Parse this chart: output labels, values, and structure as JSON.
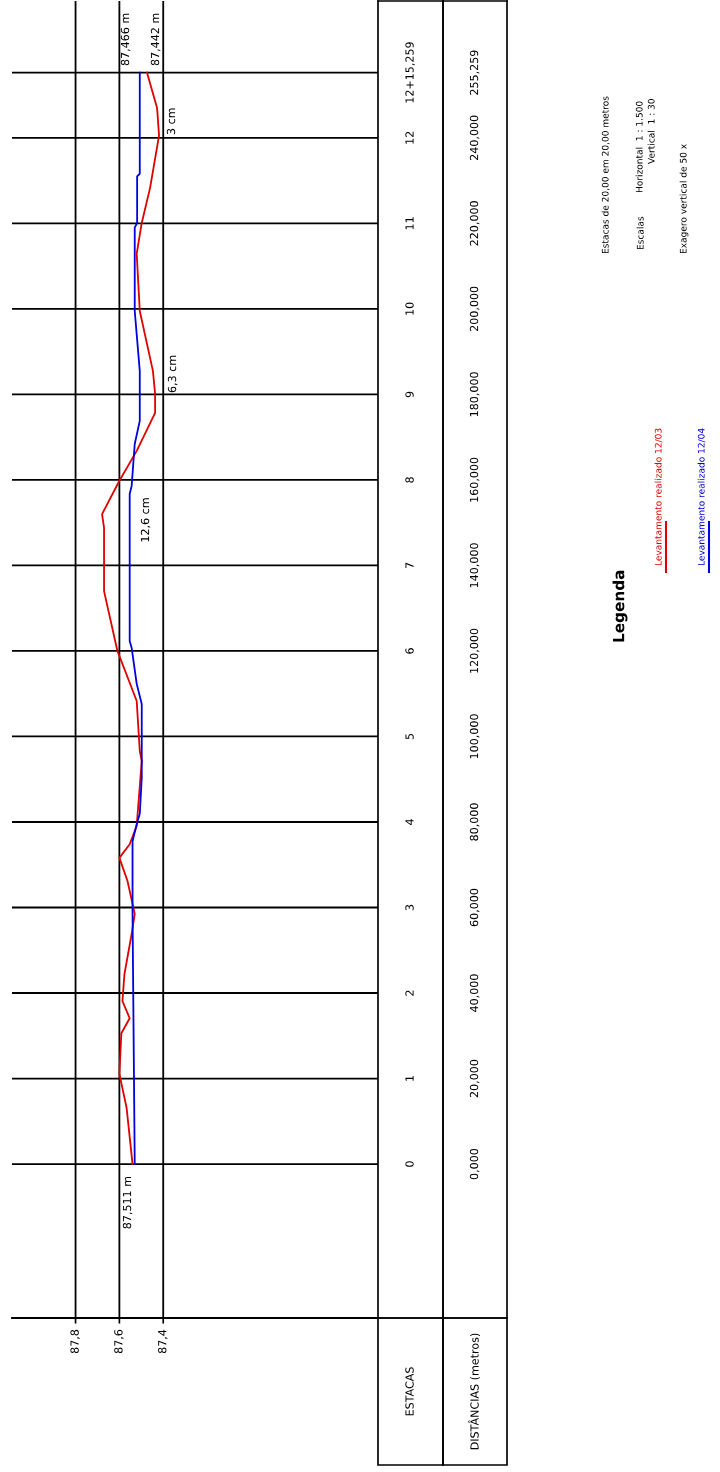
{
  "chart_data": {
    "type": "line",
    "orientation": "horizontal",
    "legend": "right",
    "legend_title": "Legenda",
    "grid": true,
    "ylabel": "DISTÂNCIAS (metros)",
    "y2label": "ESTACAS",
    "series": [
      {
        "name": "Levantamento realizado 12/03",
        "color": "#e00000",
        "x": [
          0,
          13.1,
          21.1,
          30.6,
          34.1,
          38.1,
          44.4,
          53.8,
          58.5,
          66.2,
          71.6,
          74.8,
          79.1,
          94.3,
          96.6,
          108.3,
          120.0,
          134.0,
          148.8,
          152.0,
          159.8,
          166.8,
          175.7,
          180.1,
          185.5,
          199.5,
          212.9,
          220.1,
          228.3,
          240.5,
          247.0,
          255.259
        ],
        "values": [
          87.54,
          87.567,
          87.6,
          87.591,
          87.553,
          87.586,
          87.577,
          87.544,
          87.53,
          87.563,
          87.6,
          87.553,
          87.521,
          87.498,
          87.507,
          87.521,
          87.609,
          87.67,
          87.67,
          87.679,
          87.6,
          87.521,
          87.437,
          87.437,
          87.447,
          87.507,
          87.521,
          87.498,
          87.46,
          87.419,
          87.428,
          87.474
        ]
      },
      {
        "name": "Levantamento realizado 12/04",
        "color": "#0000e0",
        "x": [
          0,
          58.5,
          75.5,
          79.5,
          81.9,
          90.3,
          107.6,
          112.3,
          120.7,
          122.3,
          156.7,
          158.6,
          168.4,
          173.8,
          185.5,
          199.5,
          219.0,
          220.1,
          231.0,
          231.6,
          255.259
        ],
        "values": [
          87.53,
          87.54,
          87.54,
          87.521,
          87.507,
          87.498,
          87.498,
          87.521,
          87.544,
          87.553,
          87.553,
          87.544,
          87.53,
          87.507,
          87.507,
          87.53,
          87.53,
          87.519,
          87.519,
          87.507,
          87.507
        ]
      }
    ],
    "xlim": [
      88.09,
      86.42
    ],
    "xticks": [
      {
        "value": 87.8,
        "label": "87,8"
      },
      {
        "value": 87.6,
        "label": "87,6"
      },
      {
        "value": 87.4,
        "label": "87,4"
      }
    ],
    "ylim": [
      -36,
      272
    ],
    "y2lim": [
      -1.8,
      13.6
    ],
    "yticks": [
      {
        "value": 0,
        "label": "0,000"
      },
      {
        "value": 20,
        "label": "20,000"
      },
      {
        "value": 40,
        "label": "40,000"
      },
      {
        "value": 60,
        "label": "60,000"
      },
      {
        "value": 80,
        "label": "80,000"
      },
      {
        "value": 100,
        "label": "100,000"
      },
      {
        "value": 120,
        "label": "120,000"
      },
      {
        "value": 140,
        "label": "140,000"
      },
      {
        "value": 160,
        "label": "160,000"
      },
      {
        "value": 180,
        "label": "180,000"
      },
      {
        "value": 200,
        "label": "200,000"
      },
      {
        "value": 220,
        "label": "220,000"
      },
      {
        "value": 240,
        "label": "240,000"
      },
      {
        "value": 255.259,
        "label": "255,259"
      }
    ],
    "y2ticks": [
      0,
      1,
      2,
      3,
      4,
      5,
      6,
      7,
      8,
      9,
      10,
      11,
      12,
      {
        "value": 12.763,
        "label": "12+15,259"
      }
    ],
    "annotations": [
      "87,511 m",
      "87,466 m",
      "87,442 m",
      "3 cm",
      "6,3 cm",
      "12,6 cm",
      "Estacas de 20,00 em 20,00 metros",
      "Escalas",
      "Horizontal  1 : 1.500",
      "Vertical  1 : 30",
      "Exagero vertical de 50 x"
    ]
  }
}
